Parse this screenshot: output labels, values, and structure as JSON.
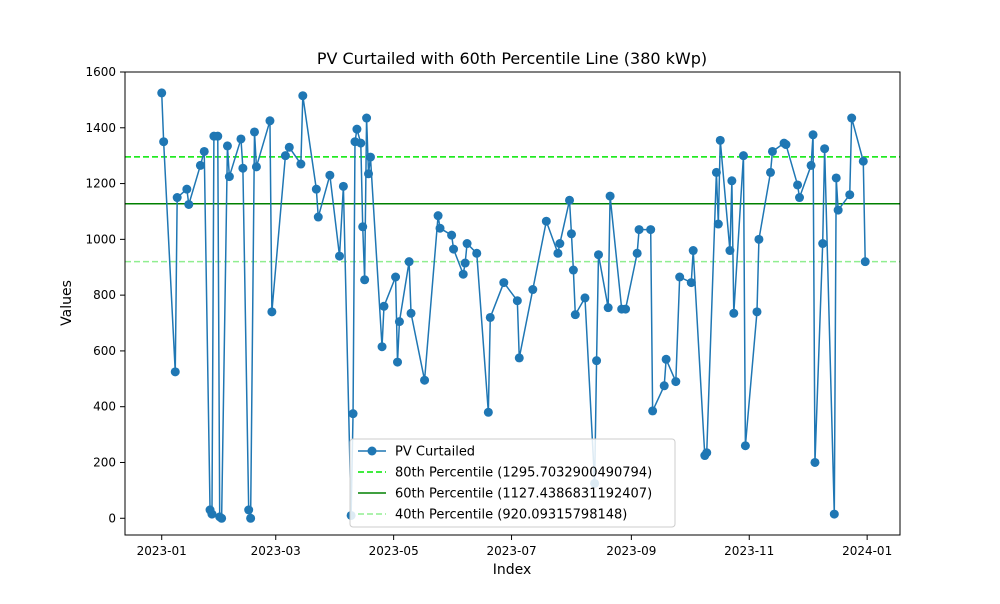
{
  "chart_data": {
    "type": "line",
    "title": "PV Curtailed with 60th Percentile Line (380 kWp)",
    "xlabel": "Index",
    "ylabel": "Values",
    "xlim": [
      "2022-12-13",
      "2024-01-18"
    ],
    "ylim": [
      -60,
      1600
    ],
    "x_ticks": [
      "2023-01",
      "2023-03",
      "2023-05",
      "2023-07",
      "2023-09",
      "2023-11",
      "2024-01"
    ],
    "y_ticks": [
      0,
      200,
      400,
      600,
      800,
      1000,
      1200,
      1400,
      1600
    ],
    "grid": false,
    "legend_position": "lower-center",
    "series": [
      {
        "name": "PV Curtailed",
        "color": "#1f77b4",
        "marker": "circle",
        "points": [
          [
            "2023-01-01",
            1525
          ],
          [
            "2023-01-02",
            1350
          ],
          [
            "2023-01-08",
            525
          ],
          [
            "2023-01-09",
            1150
          ],
          [
            "2023-01-14",
            1180
          ],
          [
            "2023-01-15",
            1125
          ],
          [
            "2023-01-21",
            1265
          ],
          [
            "2023-01-23",
            1315
          ],
          [
            "2023-01-26",
            30
          ],
          [
            "2023-01-27",
            15
          ],
          [
            "2023-01-28",
            1370
          ],
          [
            "2023-01-30",
            1370
          ],
          [
            "2023-01-31",
            5
          ],
          [
            "2023-02-01",
            0
          ],
          [
            "2023-02-04",
            1335
          ],
          [
            "2023-02-05",
            1225
          ],
          [
            "2023-02-11",
            1360
          ],
          [
            "2023-02-12",
            1255
          ],
          [
            "2023-02-15",
            30
          ],
          [
            "2023-02-16",
            0
          ],
          [
            "2023-02-18",
            1385
          ],
          [
            "2023-02-19",
            1260
          ],
          [
            "2023-02-26",
            1425
          ],
          [
            "2023-02-27",
            740
          ],
          [
            "2023-03-06",
            1300
          ],
          [
            "2023-03-08",
            1330
          ],
          [
            "2023-03-14",
            1270
          ],
          [
            "2023-03-15",
            1515
          ],
          [
            "2023-03-22",
            1180
          ],
          [
            "2023-03-23",
            1080
          ],
          [
            "2023-03-29",
            1230
          ],
          [
            "2023-04-03",
            940
          ],
          [
            "2023-04-05",
            1190
          ],
          [
            "2023-04-09",
            10
          ],
          [
            "2023-04-10",
            375
          ],
          [
            "2023-04-11",
            1350
          ],
          [
            "2023-04-12",
            1395
          ],
          [
            "2023-04-14",
            1345
          ],
          [
            "2023-04-15",
            1045
          ],
          [
            "2023-04-16",
            855
          ],
          [
            "2023-04-17",
            1435
          ],
          [
            "2023-04-18",
            1235
          ],
          [
            "2023-04-19",
            1295
          ],
          [
            "2023-04-25",
            615
          ],
          [
            "2023-04-26",
            760
          ],
          [
            "2023-05-02",
            865
          ],
          [
            "2023-05-03",
            560
          ],
          [
            "2023-05-04",
            705
          ],
          [
            "2023-05-09",
            920
          ],
          [
            "2023-05-10",
            735
          ],
          [
            "2023-05-17",
            495
          ],
          [
            "2023-05-24",
            1085
          ],
          [
            "2023-05-25",
            1040
          ],
          [
            "2023-05-31",
            1015
          ],
          [
            "2023-06-01",
            965
          ],
          [
            "2023-06-06",
            875
          ],
          [
            "2023-06-07",
            915
          ],
          [
            "2023-06-08",
            985
          ],
          [
            "2023-06-13",
            950
          ],
          [
            "2023-06-19",
            380
          ],
          [
            "2023-06-20",
            720
          ],
          [
            "2023-06-27",
            845
          ],
          [
            "2023-07-04",
            780
          ],
          [
            "2023-07-05",
            575
          ],
          [
            "2023-07-12",
            820
          ],
          [
            "2023-07-19",
            1065
          ],
          [
            "2023-07-25",
            950
          ],
          [
            "2023-07-26",
            985
          ],
          [
            "2023-07-31",
            1140
          ],
          [
            "2023-08-01",
            1020
          ],
          [
            "2023-08-02",
            890
          ],
          [
            "2023-08-03",
            730
          ],
          [
            "2023-08-08",
            790
          ],
          [
            "2023-08-13",
            125
          ],
          [
            "2023-08-14",
            565
          ],
          [
            "2023-08-15",
            945
          ],
          [
            "2023-08-20",
            755
          ],
          [
            "2023-08-21",
            1155
          ],
          [
            "2023-08-27",
            750
          ],
          [
            "2023-08-29",
            750
          ],
          [
            "2023-09-04",
            950
          ],
          [
            "2023-09-05",
            1035
          ],
          [
            "2023-09-11",
            1035
          ],
          [
            "2023-09-12",
            385
          ],
          [
            "2023-09-18",
            475
          ],
          [
            "2023-09-19",
            570
          ],
          [
            "2023-09-24",
            490
          ],
          [
            "2023-09-26",
            865
          ],
          [
            "2023-10-02",
            845
          ],
          [
            "2023-10-03",
            960
          ],
          [
            "2023-10-09",
            225
          ],
          [
            "2023-10-10",
            235
          ],
          [
            "2023-10-15",
            1240
          ],
          [
            "2023-10-16",
            1055
          ],
          [
            "2023-10-17",
            1355
          ],
          [
            "2023-10-22",
            960
          ],
          [
            "2023-10-23",
            1210
          ],
          [
            "2023-10-24",
            735
          ],
          [
            "2023-10-29",
            1300
          ],
          [
            "2023-10-30",
            260
          ],
          [
            "2023-11-05",
            740
          ],
          [
            "2023-11-06",
            1000
          ],
          [
            "2023-11-12",
            1240
          ],
          [
            "2023-11-13",
            1315
          ],
          [
            "2023-11-19",
            1345
          ],
          [
            "2023-11-20",
            1340
          ],
          [
            "2023-11-26",
            1195
          ],
          [
            "2023-11-27",
            1150
          ],
          [
            "2023-12-03",
            1265
          ],
          [
            "2023-12-04",
            1375
          ],
          [
            "2023-12-05",
            200
          ],
          [
            "2023-12-09",
            985
          ],
          [
            "2023-12-10",
            1325
          ],
          [
            "2023-12-15",
            15
          ],
          [
            "2023-12-16",
            1220
          ],
          [
            "2023-12-17",
            1105
          ],
          [
            "2023-12-23",
            1160
          ],
          [
            "2023-12-24",
            1435
          ],
          [
            "2023-12-30",
            1280
          ],
          [
            "2023-12-31",
            920
          ]
        ]
      }
    ],
    "reference_lines": [
      {
        "name": "80th Percentile (1295.7032900490794)",
        "value": 1295.7032900490794,
        "color": "#00e600",
        "style": "dashed"
      },
      {
        "name": "60th Percentile (1127.4386831192407)",
        "value": 1127.4386831192407,
        "color": "#008000",
        "style": "solid"
      },
      {
        "name": "40th Percentile (920.09315798148)",
        "value": 920.09315798148,
        "color": "#90ee90",
        "style": "dashed"
      }
    ]
  }
}
